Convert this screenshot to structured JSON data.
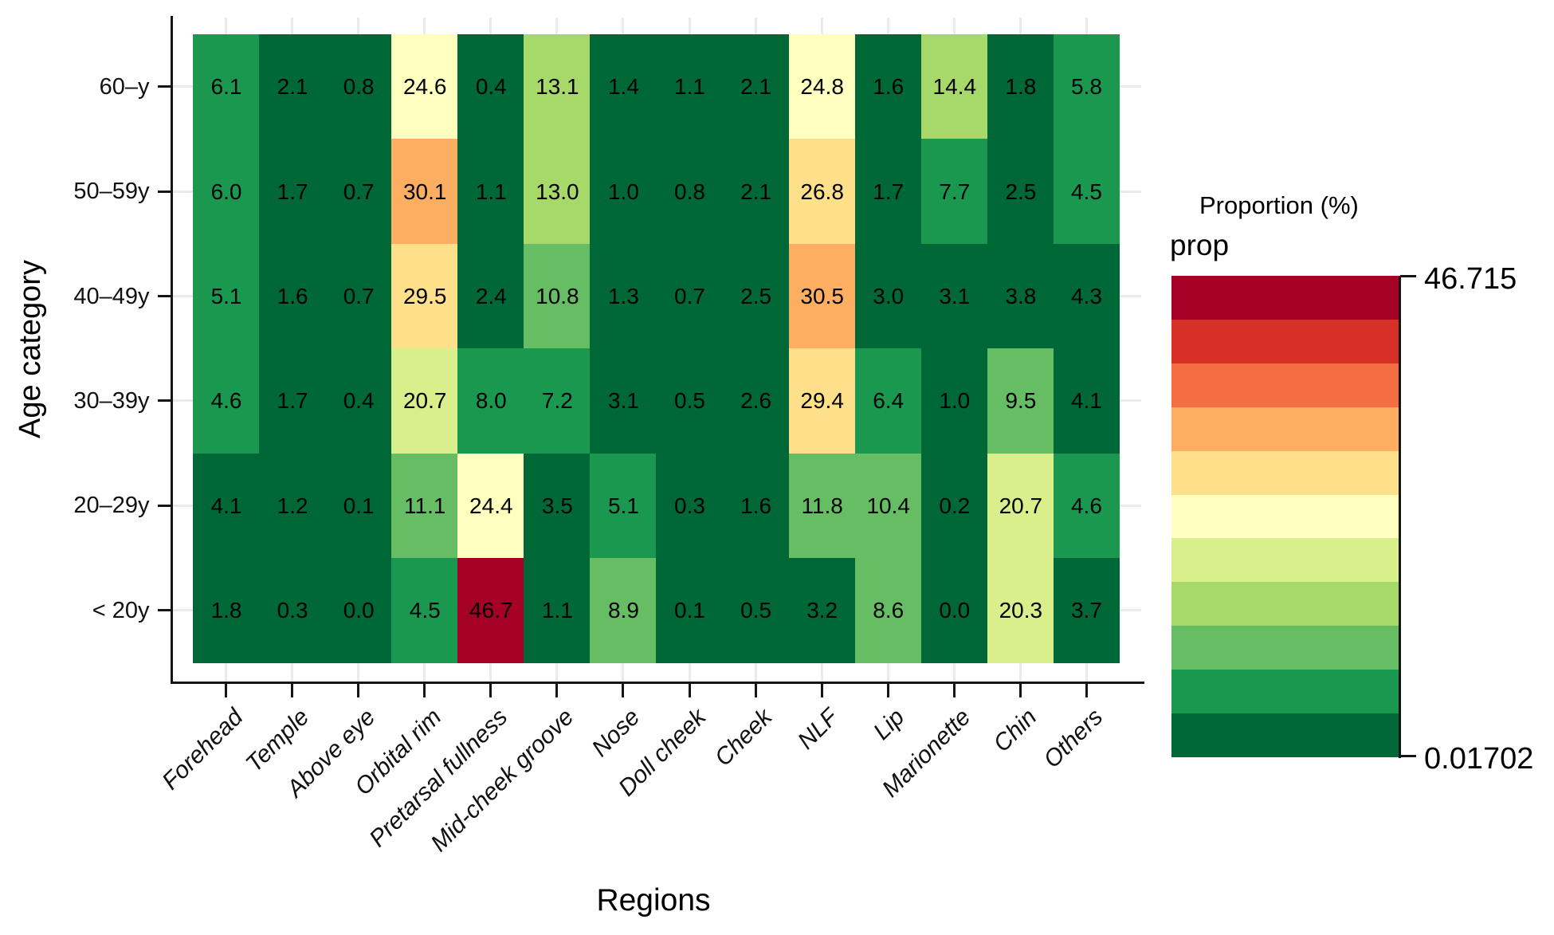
{
  "chart_data": {
    "type": "heatmap",
    "title": "",
    "xlabel": "Regions",
    "ylabel": "Age category",
    "x_categories": [
      "Forehead",
      "Temple",
      "Above eye",
      "Orbital rim",
      "Pretarsal fullness",
      "Mid-cheek groove",
      "Nose",
      "Doll cheek",
      "Cheek",
      "NLF",
      "Lip",
      "Marionette",
      "Chin",
      "Others"
    ],
    "y_categories_top_to_bottom": [
      "60–y",
      "50–59y",
      "40–49y",
      "30–39y",
      "20–29y",
      "< 20y"
    ],
    "values": [
      [
        6.1,
        2.1,
        0.8,
        24.6,
        0.4,
        13.1,
        1.4,
        1.1,
        2.1,
        24.8,
        1.6,
        14.4,
        1.8,
        5.8
      ],
      [
        6.0,
        1.7,
        0.7,
        30.1,
        1.1,
        13.0,
        1.0,
        0.8,
        2.1,
        26.8,
        1.7,
        7.7,
        2.5,
        4.5
      ],
      [
        5.1,
        1.6,
        0.7,
        29.5,
        2.4,
        10.8,
        1.3,
        0.7,
        2.5,
        30.5,
        3.0,
        3.1,
        3.8,
        4.3
      ],
      [
        4.6,
        1.7,
        0.4,
        20.7,
        8.0,
        7.2,
        3.1,
        0.5,
        2.6,
        29.4,
        6.4,
        1.0,
        9.5,
        4.1
      ],
      [
        4.1,
        1.2,
        0.1,
        11.1,
        24.4,
        3.5,
        5.1,
        0.3,
        1.6,
        11.8,
        10.4,
        0.2,
        20.7,
        4.6
      ],
      [
        1.8,
        0.3,
        0.0,
        4.5,
        46.7,
        1.1,
        8.9,
        0.1,
        0.5,
        3.2,
        8.6,
        0.0,
        20.3,
        3.7
      ]
    ],
    "value_decimals": 1,
    "color_scale": {
      "style": "binned",
      "bins": 11,
      "domain_min": 0.01702,
      "domain_max": 46.715,
      "palette_low_to_high": [
        "#006837",
        "#1A9850",
        "#66BD63",
        "#A6D96A",
        "#D9EF8B",
        "#FFFFBF",
        "#FEE08B",
        "#FDAE61",
        "#F46D43",
        "#D73027",
        "#A50026"
      ],
      "bin_overrides": [
        {
          "row": 2,
          "col": 13,
          "bin": 0
        }
      ]
    },
    "legend": {
      "position": "right",
      "title": "Proportion (%)",
      "name": "prop",
      "max_label": "46.715",
      "min_label": "0.01702"
    },
    "grid": false
  }
}
